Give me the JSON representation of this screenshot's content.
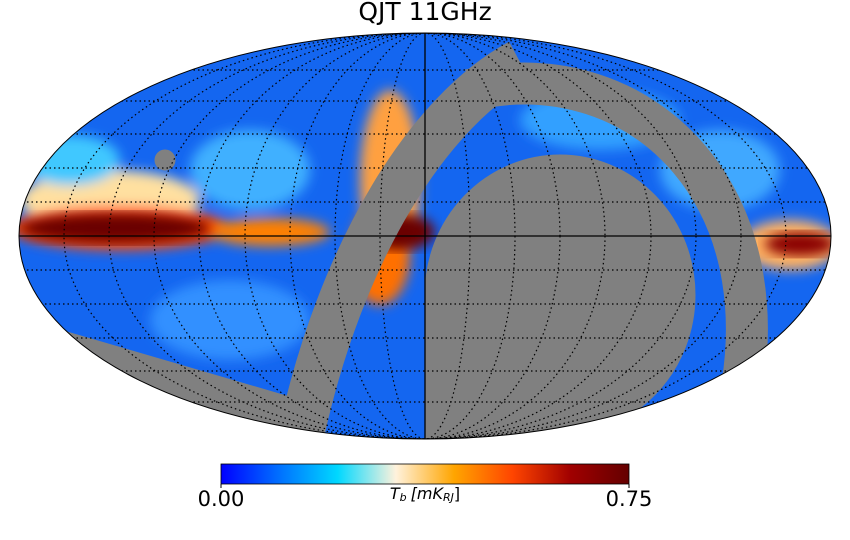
{
  "title": "QJT 11GHz",
  "colorbar": {
    "label": {
      "symbol": "T",
      "symbol_sub": "b",
      "unit": "[mK",
      "unit_sub": "RJ",
      "close": "]"
    },
    "clim": [
      0,
      0.75
    ],
    "ticks": [
      {
        "value": 0,
        "label": "0.00"
      },
      {
        "value": 0.75,
        "label": "0.75"
      }
    ],
    "colors": [
      "#0000ff",
      "#0070ff",
      "#00d8ff",
      "#fff2dc",
      "#ffa500",
      "#ff4500",
      "#a00000",
      "#640000"
    ]
  }
}
